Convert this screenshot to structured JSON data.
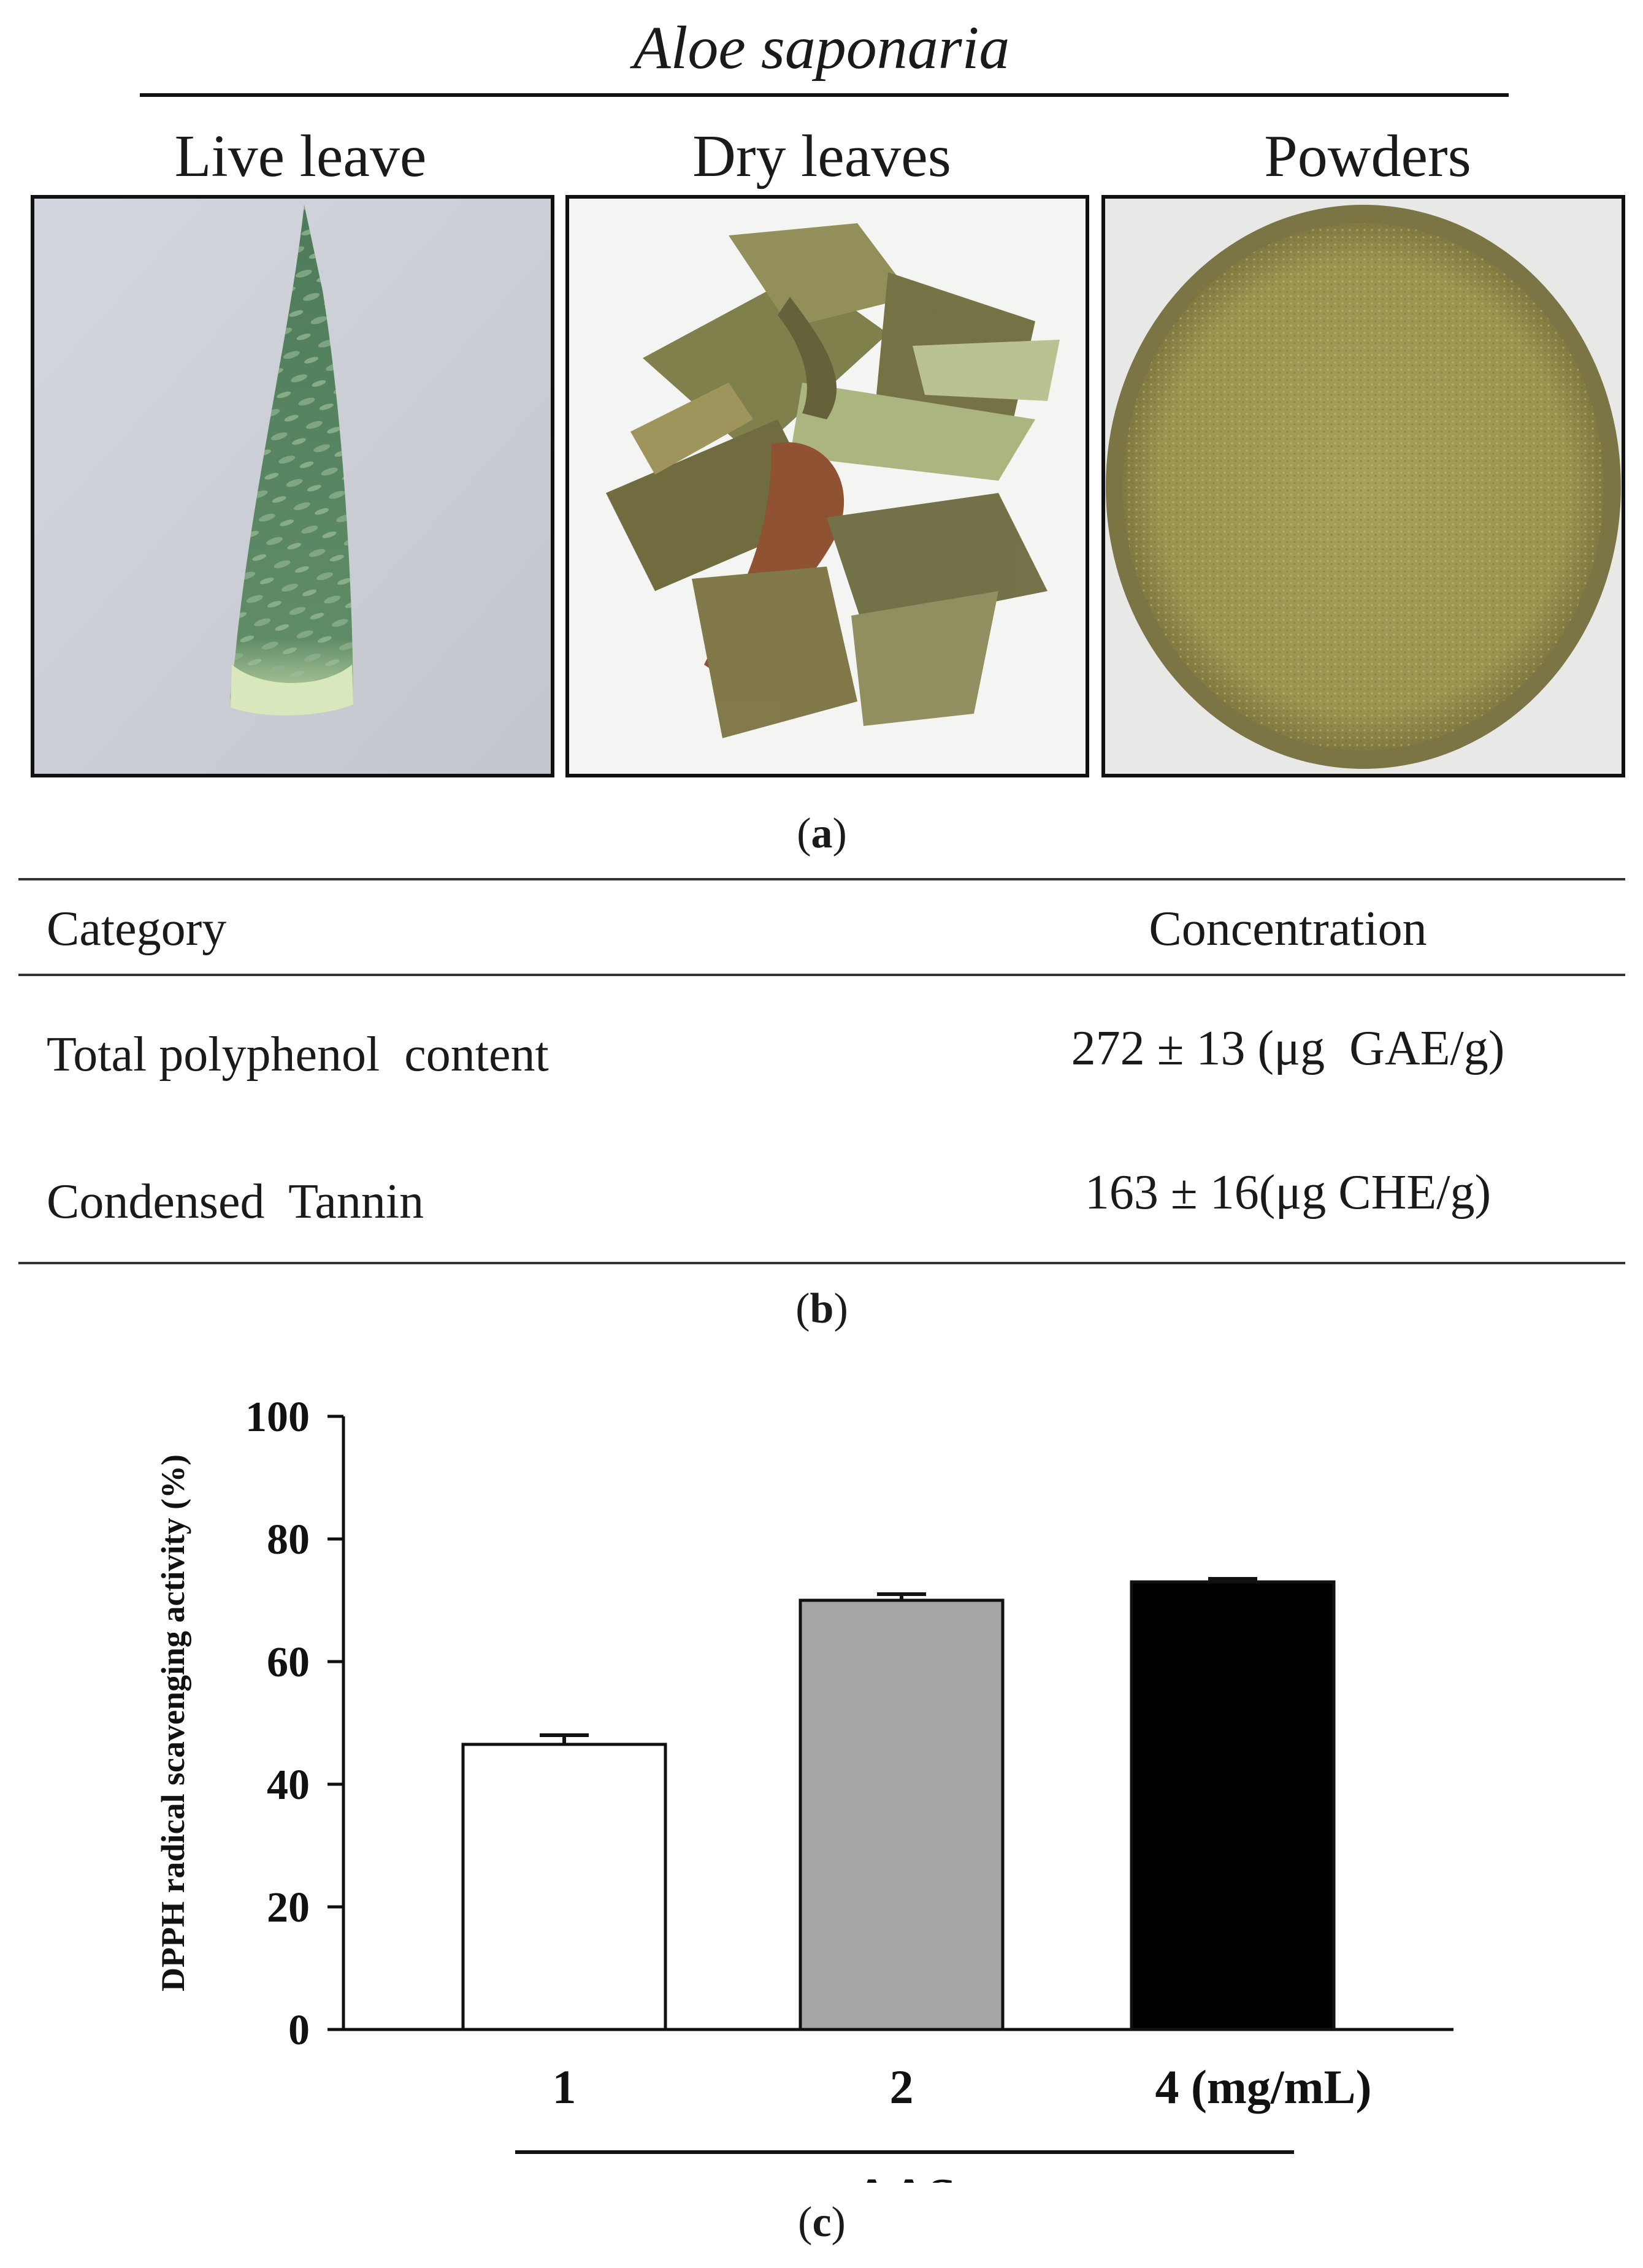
{
  "figure": {
    "title": "Aloe saponaria",
    "panels": {
      "a": {
        "label": "a",
        "photos": [
          {
            "label": "Live leave"
          },
          {
            "label": "Dry leaves"
          },
          {
            "label": "Powders"
          }
        ]
      },
      "b": {
        "label": "b",
        "table": {
          "headers": [
            "Category",
            "Concentration"
          ],
          "rows": [
            {
              "category": "Total polyphenol  content",
              "concentration": "272 ± 13 (μg  GAE/g)"
            },
            {
              "category": "Condensed  Tannin",
              "concentration": "163 ± 16(μg CHE/g)"
            }
          ]
        }
      },
      "c": {
        "label": "c"
      }
    }
  },
  "chart_data": {
    "type": "bar",
    "categories": [
      "1",
      "2",
      "4 (mg/mL)"
    ],
    "values": [
      46.5,
      70,
      73
    ],
    "errors": [
      1.5,
      1.0,
      0.5
    ],
    "bar_colors": [
      "#ffffff",
      "#a6a6a6",
      "#000000"
    ],
    "xlabel": "AAS",
    "ylabel": "DPPH radical scavenging activity (%)",
    "ylim": [
      0,
      100
    ],
    "yticks": [
      0,
      20,
      40,
      60,
      80,
      100
    ],
    "grid": false
  }
}
